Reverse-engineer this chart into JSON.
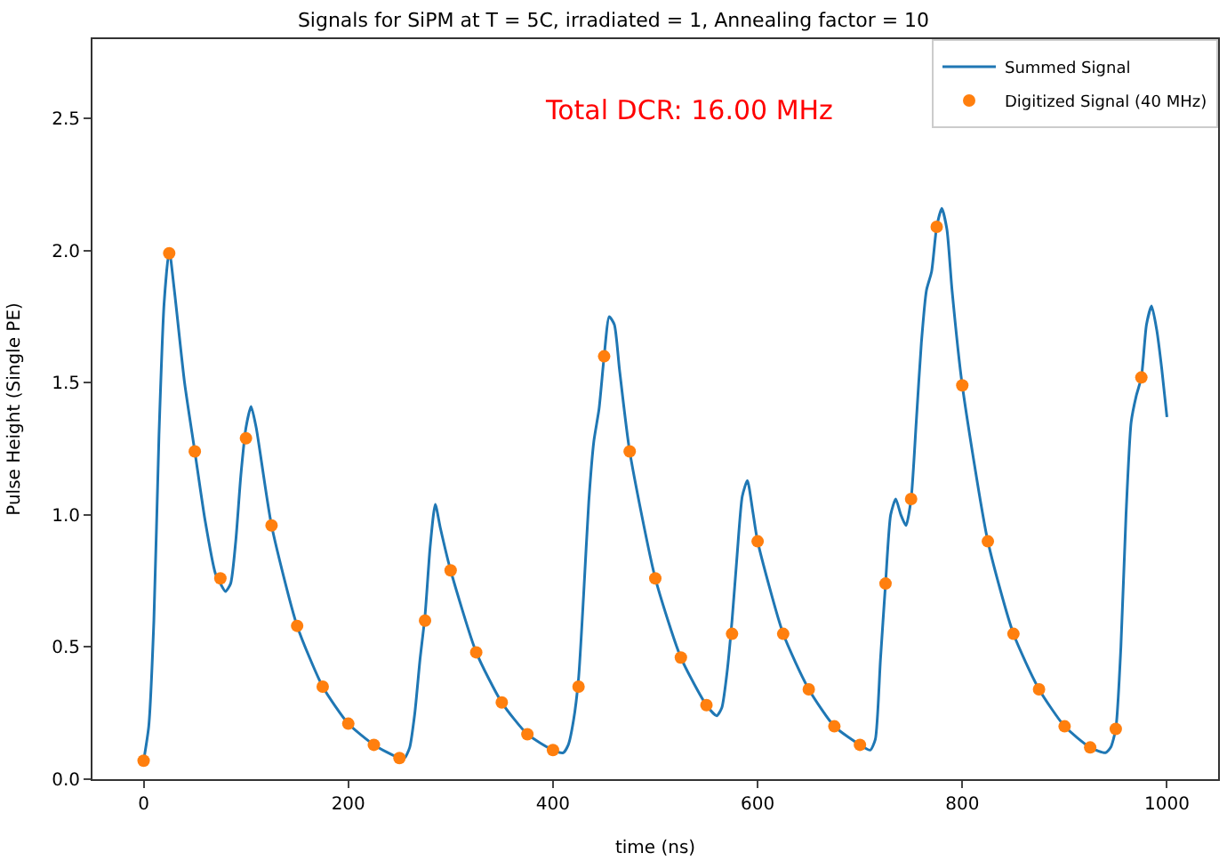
{
  "chart_data": {
    "type": "line",
    "title": "Signals for SiPM at T = 5C, irradiated = 1, Annealing factor = 10",
    "xlabel": "time (ns)",
    "ylabel": "Pulse Height (Single PE)",
    "annotations": [
      "Total DCR: 16.00 MHz"
    ],
    "xlim": [
      -50,
      1050
    ],
    "xticks": [
      0,
      200,
      400,
      600,
      800,
      1000
    ],
    "ylim": [
      0,
      2.8
    ],
    "yticks": [
      {
        "value": 0,
        "label": "0.0"
      },
      0.5,
      {
        "value": 1,
        "label": "1.0"
      },
      1.5,
      {
        "value": 2,
        "label": "2.0"
      },
      2.5
    ],
    "legend": "top right",
    "series": [
      {
        "name": "Summed Signal",
        "marker": "none",
        "line_style": "solid",
        "color": "#1f77b4",
        "x": [
          0,
          5,
          10,
          15,
          20,
          25,
          30,
          40,
          50,
          60,
          70,
          75,
          80,
          85,
          90,
          95,
          100,
          105,
          110,
          125,
          150,
          175,
          200,
          225,
          250,
          255,
          260,
          265,
          270,
          275,
          280,
          285,
          290,
          300,
          325,
          350,
          375,
          400,
          410,
          415,
          420,
          425,
          430,
          435,
          440,
          445,
          450,
          455,
          460,
          465,
          475,
          500,
          525,
          550,
          560,
          565,
          570,
          575,
          580,
          585,
          590,
          595,
          600,
          625,
          650,
          675,
          700,
          710,
          715,
          720,
          725,
          730,
          735,
          740,
          745,
          750,
          755,
          760,
          765,
          770,
          775,
          780,
          785,
          790,
          800,
          825,
          850,
          875,
          900,
          925,
          940,
          945,
          950,
          955,
          960,
          965,
          970,
          975,
          980,
          985,
          990,
          995,
          1000
        ],
        "values": [
          0.07,
          0.2,
          0.6,
          1.3,
          1.8,
          2.0,
          1.85,
          1.5,
          1.24,
          0.98,
          0.78,
          0.74,
          0.71,
          0.74,
          0.9,
          1.15,
          1.33,
          1.41,
          1.33,
          0.96,
          0.58,
          0.35,
          0.21,
          0.13,
          0.08,
          0.08,
          0.12,
          0.25,
          0.45,
          0.62,
          0.88,
          1.04,
          0.95,
          0.79,
          0.48,
          0.29,
          0.17,
          0.11,
          0.1,
          0.13,
          0.22,
          0.38,
          0.7,
          1.05,
          1.28,
          1.4,
          1.6,
          1.75,
          1.72,
          1.55,
          1.24,
          0.76,
          0.46,
          0.28,
          0.24,
          0.27,
          0.4,
          0.6,
          0.85,
          1.07,
          1.13,
          1.02,
          0.9,
          0.55,
          0.34,
          0.2,
          0.13,
          0.11,
          0.15,
          0.45,
          0.74,
          1.0,
          1.06,
          1.0,
          0.96,
          1.06,
          1.35,
          1.65,
          1.85,
          1.92,
          2.09,
          2.16,
          2.08,
          1.85,
          1.49,
          0.9,
          0.55,
          0.34,
          0.2,
          0.12,
          0.1,
          0.12,
          0.19,
          0.5,
          1.0,
          1.35,
          1.45,
          1.52,
          1.72,
          1.79,
          1.7,
          1.55,
          1.37
        ]
      },
      {
        "name": "Digitized Signal (40 MHz)",
        "type": "scatter",
        "marker": "circle",
        "color": "#ff7f0e",
        "x": [
          0,
          25,
          50,
          75,
          100,
          125,
          150,
          175,
          200,
          225,
          250,
          275,
          300,
          325,
          350,
          375,
          400,
          425,
          450,
          475,
          500,
          525,
          550,
          575,
          600,
          625,
          650,
          675,
          700,
          725,
          750,
          775,
          800,
          825,
          850,
          875,
          900,
          925,
          950,
          975
        ],
        "values": [
          0.07,
          1.99,
          1.24,
          0.76,
          1.29,
          0.96,
          0.58,
          0.35,
          0.21,
          0.13,
          0.08,
          0.6,
          0.79,
          0.48,
          0.29,
          0.17,
          0.11,
          0.35,
          1.6,
          1.24,
          0.76,
          0.46,
          0.28,
          0.55,
          0.9,
          0.55,
          0.34,
          0.2,
          0.13,
          0.74,
          1.06,
          2.09,
          1.49,
          0.9,
          0.55,
          0.34,
          0.2,
          0.12,
          0.19,
          1.52
        ]
      }
    ]
  }
}
